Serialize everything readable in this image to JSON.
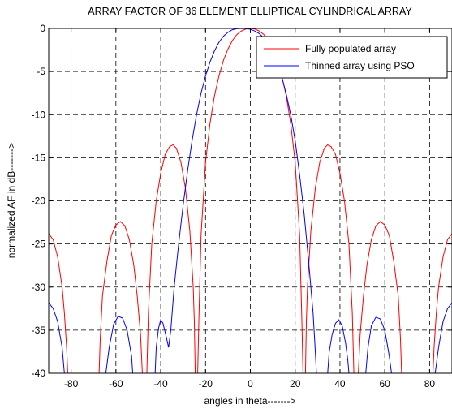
{
  "chart_data": {
    "type": "line",
    "title": "ARRAY FACTOR OF 36 ELEMENT ELLIPTICAL CYLINDRICAL ARRAY",
    "xlabel": "angles in theta------->",
    "ylabel": "normalized AF in dB------->",
    "xlim": [
      -90,
      90
    ],
    "ylim": [
      -40,
      0
    ],
    "xticks": [
      -80,
      -60,
      -40,
      -20,
      0,
      20,
      40,
      60,
      80
    ],
    "yticks": [
      0,
      -5,
      -10,
      -15,
      -20,
      -25,
      -30,
      -35,
      -40
    ],
    "grid": true,
    "grid_style": "dashed",
    "legend_position": "top-right",
    "series": [
      {
        "name": "Fully populated array",
        "color": "#ff0000",
        "points": [
          [
            -90,
            -23.8
          ],
          [
            -88,
            -24.5
          ],
          [
            -86,
            -26.5
          ],
          [
            -84,
            -30
          ],
          [
            -83,
            -33
          ],
          [
            -82,
            -37
          ],
          [
            -81.5,
            -40
          ],
          [
            -67.5,
            -40
          ],
          [
            -67,
            -36
          ],
          [
            -66,
            -31
          ],
          [
            -64,
            -27
          ],
          [
            -62,
            -24
          ],
          [
            -60,
            -22.8
          ],
          [
            -58,
            -22.4
          ],
          [
            -56,
            -22.9
          ],
          [
            -54,
            -24.5
          ],
          [
            -52,
            -27.5
          ],
          [
            -50.5,
            -31
          ],
          [
            -49,
            -35.5
          ],
          [
            -48.2,
            -40
          ],
          [
            -46.2,
            -40
          ],
          [
            -45.5,
            -33
          ],
          [
            -44,
            -25
          ],
          [
            -42,
            -20
          ],
          [
            -40,
            -16.8
          ],
          [
            -38,
            -14.6
          ],
          [
            -36,
            -13.7
          ],
          [
            -34.5,
            -13.5
          ],
          [
            -33,
            -13.9
          ],
          [
            -31,
            -15.5
          ],
          [
            -29,
            -18.5
          ],
          [
            -27,
            -23.5
          ],
          [
            -25.5,
            -30
          ],
          [
            -25,
            -34
          ],
          [
            -24.6,
            -40
          ],
          [
            -23.5,
            -40
          ],
          [
            -23,
            -34
          ],
          [
            -22,
            -24
          ],
          [
            -20,
            -15.5
          ],
          [
            -18,
            -11
          ],
          [
            -16,
            -7.8
          ],
          [
            -14,
            -5.5
          ],
          [
            -12,
            -3.7
          ],
          [
            -10,
            -2.4
          ],
          [
            -8,
            -1.4
          ],
          [
            -6,
            -0.7
          ],
          [
            -4,
            -0.3
          ],
          [
            -2,
            -0.07
          ],
          [
            0,
            0
          ],
          [
            2,
            -0.07
          ],
          [
            4,
            -0.3
          ],
          [
            6,
            -0.7
          ],
          [
            8,
            -1.4
          ],
          [
            10,
            -2.4
          ],
          [
            12,
            -3.7
          ],
          [
            14,
            -5.5
          ],
          [
            16,
            -7.8
          ],
          [
            18,
            -11
          ],
          [
            20,
            -15.5
          ],
          [
            22,
            -24
          ],
          [
            23,
            -34
          ],
          [
            23.5,
            -40
          ],
          [
            24.6,
            -40
          ],
          [
            25,
            -34
          ],
          [
            25.5,
            -30
          ],
          [
            27,
            -23.5
          ],
          [
            29,
            -18.5
          ],
          [
            31,
            -15.5
          ],
          [
            33,
            -13.9
          ],
          [
            34.5,
            -13.5
          ],
          [
            36,
            -13.7
          ],
          [
            38,
            -14.6
          ],
          [
            40,
            -16.8
          ],
          [
            42,
            -20
          ],
          [
            44,
            -25
          ],
          [
            45.5,
            -33
          ],
          [
            46.2,
            -40
          ],
          [
            48.2,
            -40
          ],
          [
            49,
            -35.5
          ],
          [
            50.5,
            -31
          ],
          [
            52,
            -27.5
          ],
          [
            54,
            -24.5
          ],
          [
            56,
            -22.9
          ],
          [
            58,
            -22.4
          ],
          [
            60,
            -22.8
          ],
          [
            62,
            -24
          ],
          [
            64,
            -27
          ],
          [
            66,
            -31
          ],
          [
            67,
            -36
          ],
          [
            67.5,
            -40
          ],
          [
            81.5,
            -40
          ],
          [
            82,
            -37
          ],
          [
            83,
            -33
          ],
          [
            84,
            -30
          ],
          [
            86,
            -26.5
          ],
          [
            88,
            -24.5
          ],
          [
            90,
            -23.8
          ]
        ]
      },
      {
        "name": "Thinned array using PSO",
        "color": "#0000ff",
        "points": [
          [
            -90,
            -31.8
          ],
          [
            -88,
            -32.5
          ],
          [
            -86,
            -34
          ],
          [
            -84,
            -37
          ],
          [
            -83,
            -40
          ],
          [
            -64.5,
            -40
          ],
          [
            -63,
            -37
          ],
          [
            -61,
            -34.3
          ],
          [
            -59,
            -33.4
          ],
          [
            -57,
            -33.6
          ],
          [
            -55,
            -35
          ],
          [
            -53,
            -38
          ],
          [
            -52.5,
            -40
          ],
          [
            -42.5,
            -40
          ],
          [
            -42,
            -37
          ],
          [
            -41,
            -34.8
          ],
          [
            -40,
            -33.8
          ],
          [
            -39,
            -34.2
          ],
          [
            -37.5,
            -35.8
          ],
          [
            -36.5,
            -37
          ],
          [
            -35.5,
            -35
          ],
          [
            -34,
            -30
          ],
          [
            -32,
            -25
          ],
          [
            -30,
            -20.5
          ],
          [
            -28,
            -16.5
          ],
          [
            -26,
            -13
          ],
          [
            -24,
            -10
          ],
          [
            -22,
            -7.5
          ],
          [
            -20,
            -5.5
          ],
          [
            -18,
            -3.9
          ],
          [
            -16,
            -2.6
          ],
          [
            -14,
            -1.6
          ],
          [
            -12,
            -0.9
          ],
          [
            -10,
            -0.45
          ],
          [
            -8,
            -0.15
          ],
          [
            -6,
            -0.03
          ],
          [
            -4,
            0
          ],
          [
            -2,
            -0.02
          ],
          [
            0,
            -0.1
          ],
          [
            2,
            -0.3
          ],
          [
            4,
            -0.6
          ],
          [
            6,
            -1.1
          ],
          [
            8,
            -1.8
          ],
          [
            10,
            -2.8
          ],
          [
            12,
            -4
          ],
          [
            14,
            -5.6
          ],
          [
            16,
            -7.6
          ],
          [
            18,
            -10
          ],
          [
            20,
            -13
          ],
          [
            22,
            -17
          ],
          [
            24,
            -21.5
          ],
          [
            26,
            -27
          ],
          [
            28,
            -33
          ],
          [
            29,
            -37.5
          ],
          [
            29.5,
            -40
          ],
          [
            34.5,
            -40
          ],
          [
            35.2,
            -37.5
          ],
          [
            36.5,
            -35.5
          ],
          [
            38,
            -34.2
          ],
          [
            39.5,
            -33.8
          ],
          [
            41,
            -34.5
          ],
          [
            42.5,
            -36.5
          ],
          [
            43.5,
            -38.5
          ],
          [
            44,
            -40
          ],
          [
            51.5,
            -40
          ],
          [
            52.5,
            -37
          ],
          [
            54,
            -34.5
          ],
          [
            56,
            -33.5
          ],
          [
            58,
            -33.7
          ],
          [
            60,
            -35
          ],
          [
            62,
            -38
          ],
          [
            63,
            -40
          ],
          [
            82.5,
            -40
          ],
          [
            84,
            -37
          ],
          [
            86,
            -34
          ],
          [
            88,
            -32.5
          ],
          [
            90,
            -31.8
          ]
        ]
      }
    ]
  }
}
